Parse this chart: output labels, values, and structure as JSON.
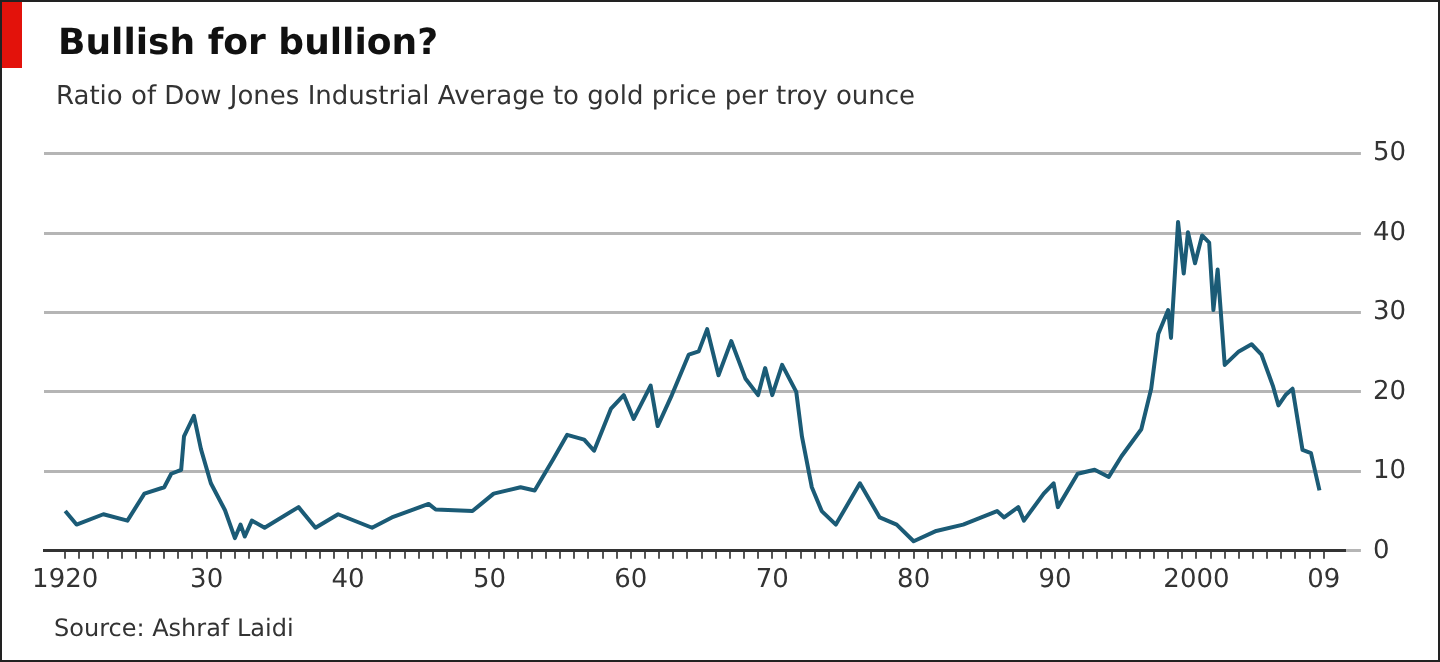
{
  "chart_data": {
    "type": "line",
    "title": "Bullish for bullion?",
    "subtitle": "Ratio of Dow Jones Industrial Average to gold price per troy ounce",
    "annotations": [
      "Source: Ashraf Laidi"
    ],
    "series": [
      {
        "color": "#1b5b76",
        "x": [
          1920,
          1920.8,
          1922.7,
          1924.4,
          1925.6,
          1927.0,
          1927.5,
          1928.2,
          1928.4,
          1929.1,
          1929.6,
          1930.3,
          1931.3,
          1932.0,
          1932.4,
          1932.7,
          1933.2,
          1934.1,
          1936.5,
          1937.7,
          1939.3,
          1941.7,
          1943.1,
          1945.7,
          1946.2,
          1948.8,
          1950.3,
          1952.2,
          1953.2,
          1954.5,
          1955.5,
          1956.7,
          1957.4,
          1958.6,
          1959.5,
          1960.2,
          1961.4,
          1961.9,
          1962.9,
          1964.1,
          1964.8,
          1965.4,
          1966.2,
          1967.1,
          1968.1,
          1969.0,
          1969.5,
          1970.0,
          1970.7,
          1971.7,
          1972.1,
          1972.8,
          1973.5,
          1974.5,
          1976.2,
          1977.6,
          1978.8,
          1980.0,
          1981.6,
          1983.5,
          1985.9,
          1986.4,
          1987.4,
          1987.8,
          1989.2,
          1989.9,
          1990.2,
          1991.6,
          1992.8,
          1993.8,
          1994.7,
          1996.1,
          1996.8,
          1997.3,
          1998.0,
          1998.2,
          1998.7,
          1999.1,
          1999.4,
          1999.9,
          2000.4,
          2000.9,
          2001.2,
          2001.5,
          2002.0,
          2003.0,
          2003.9,
          2004.6,
          2005.4,
          2005.8,
          2006.3,
          2006.8,
          2007.5,
          2008.1,
          2008.7
        ],
        "values": [
          5.0,
          3.3,
          4.6,
          3.8,
          7.2,
          8.0,
          9.7,
          10.2,
          14.4,
          17.0,
          12.8,
          8.5,
          5.1,
          1.6,
          3.3,
          1.8,
          3.8,
          2.9,
          5.5,
          2.9,
          4.6,
          2.9,
          4.2,
          5.9,
          5.2,
          5.0,
          7.2,
          8.0,
          7.6,
          11.5,
          14.6,
          14.0,
          12.6,
          17.9,
          19.6,
          16.6,
          20.8,
          15.7,
          19.6,
          24.7,
          25.1,
          27.9,
          22.1,
          26.4,
          21.7,
          19.6,
          23.0,
          19.6,
          23.4,
          20.0,
          14.4,
          8.0,
          5.0,
          3.3,
          8.5,
          4.2,
          3.3,
          1.2,
          2.5,
          3.3,
          5.0,
          4.2,
          5.5,
          3.8,
          7.2,
          8.5,
          5.5,
          9.7,
          10.2,
          9.3,
          11.9,
          15.3,
          20.4,
          27.3,
          30.3,
          26.8,
          41.4,
          34.9,
          40.1,
          36.2,
          39.7,
          38.8,
          30.3,
          35.4,
          23.4,
          25.1,
          26.0,
          24.7,
          20.8,
          18.3,
          19.6,
          20.4,
          12.7,
          12.3,
          7.6
        ]
      }
    ],
    "xlim": [
      1918.5,
      2010.5
    ],
    "ylim": [
      0,
      50
    ],
    "yticks": [
      0,
      10,
      20,
      30,
      40,
      50
    ],
    "xticks": [
      {
        "value": 1920,
        "label": "1920"
      },
      {
        "value": 1921,
        "label": null
      },
      {
        "value": 1922,
        "label": null
      },
      {
        "value": 1923,
        "label": null
      },
      {
        "value": 1924,
        "label": null
      },
      {
        "value": 1925,
        "label": null
      },
      {
        "value": 1926,
        "label": null
      },
      {
        "value": 1927,
        "label": null
      },
      {
        "value": 1928,
        "label": null
      },
      {
        "value": 1929,
        "label": null
      },
      {
        "value": 1930,
        "label": "30"
      },
      {
        "value": 1931,
        "label": null
      },
      {
        "value": 1932,
        "label": null
      },
      {
        "value": 1933,
        "label": null
      },
      {
        "value": 1934,
        "label": null
      },
      {
        "value": 1935,
        "label": null
      },
      {
        "value": 1936,
        "label": null
      },
      {
        "value": 1937,
        "label": null
      },
      {
        "value": 1938,
        "label": null
      },
      {
        "value": 1939,
        "label": null
      },
      {
        "value": 1940,
        "label": "40"
      },
      {
        "value": 1941,
        "label": null
      },
      {
        "value": 1942,
        "label": null
      },
      {
        "value": 1943,
        "label": null
      },
      {
        "value": 1944,
        "label": null
      },
      {
        "value": 1945,
        "label": null
      },
      {
        "value": 1946,
        "label": null
      },
      {
        "value": 1947,
        "label": null
      },
      {
        "value": 1948,
        "label": null
      },
      {
        "value": 1949,
        "label": null
      },
      {
        "value": 1950,
        "label": "50"
      },
      {
        "value": 1951,
        "label": null
      },
      {
        "value": 1952,
        "label": null
      },
      {
        "value": 1953,
        "label": null
      },
      {
        "value": 1954,
        "label": null
      },
      {
        "value": 1955,
        "label": null
      },
      {
        "value": 1956,
        "label": null
      },
      {
        "value": 1957,
        "label": null
      },
      {
        "value": 1958,
        "label": null
      },
      {
        "value": 1959,
        "label": null
      },
      {
        "value": 1960,
        "label": "60"
      },
      {
        "value": 1961,
        "label": null
      },
      {
        "value": 1962,
        "label": null
      },
      {
        "value": 1963,
        "label": null
      },
      {
        "value": 1964,
        "label": null
      },
      {
        "value": 1965,
        "label": null
      },
      {
        "value": 1966,
        "label": null
      },
      {
        "value": 1967,
        "label": null
      },
      {
        "value": 1968,
        "label": null
      },
      {
        "value": 1969,
        "label": null
      },
      {
        "value": 1970,
        "label": "70"
      },
      {
        "value": 1971,
        "label": null
      },
      {
        "value": 1972,
        "label": null
      },
      {
        "value": 1973,
        "label": null
      },
      {
        "value": 1974,
        "label": null
      },
      {
        "value": 1975,
        "label": null
      },
      {
        "value": 1976,
        "label": null
      },
      {
        "value": 1977,
        "label": null
      },
      {
        "value": 1978,
        "label": null
      },
      {
        "value": 1979,
        "label": null
      },
      {
        "value": 1980,
        "label": "80"
      },
      {
        "value": 1981,
        "label": null
      },
      {
        "value": 1982,
        "label": null
      },
      {
        "value": 1983,
        "label": null
      },
      {
        "value": 1984,
        "label": null
      },
      {
        "value": 1985,
        "label": null
      },
      {
        "value": 1986,
        "label": null
      },
      {
        "value": 1987,
        "label": null
      },
      {
        "value": 1988,
        "label": null
      },
      {
        "value": 1989,
        "label": null
      },
      {
        "value": 1990,
        "label": "90"
      },
      {
        "value": 1991,
        "label": null
      },
      {
        "value": 1992,
        "label": null
      },
      {
        "value": 1993,
        "label": null
      },
      {
        "value": 1994,
        "label": null
      },
      {
        "value": 1995,
        "label": null
      },
      {
        "value": 1996,
        "label": null
      },
      {
        "value": 1997,
        "label": null
      },
      {
        "value": 1998,
        "label": null
      },
      {
        "value": 1999,
        "label": null
      },
      {
        "value": 2000,
        "label": "2000"
      },
      {
        "value": 2001,
        "label": null
      },
      {
        "value": 2002,
        "label": null
      },
      {
        "value": 2003,
        "label": null
      },
      {
        "value": 2004,
        "label": null
      },
      {
        "value": 2005,
        "label": null
      },
      {
        "value": 2006,
        "label": null
      },
      {
        "value": 2007,
        "label": null
      },
      {
        "value": 2008,
        "label": null
      },
      {
        "value": 2009,
        "label": "09"
      }
    ],
    "grid": "y",
    "legend": false,
    "marker": "none",
    "line_style": "solid"
  }
}
